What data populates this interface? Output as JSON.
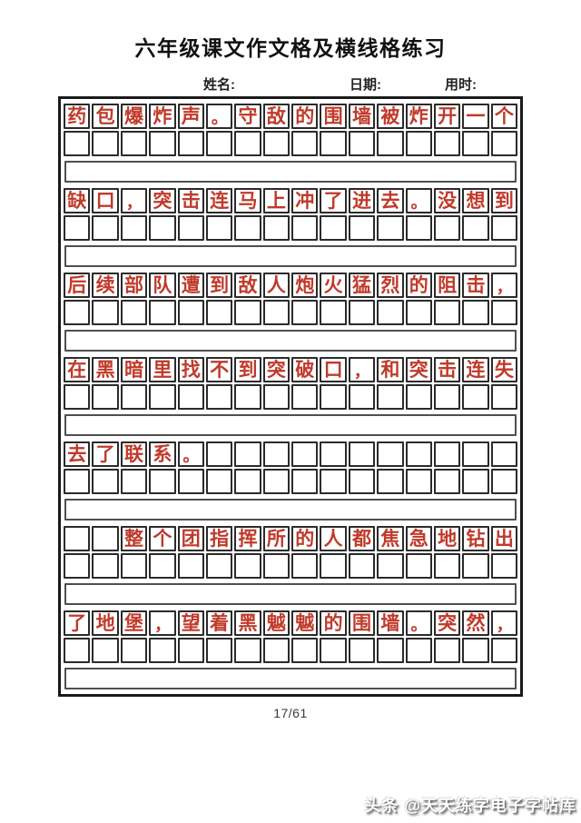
{
  "title": "六年级课文作文格及横线格练习",
  "header": {
    "name_label": "姓名:",
    "date_label": "日期:",
    "time_label": "用时:"
  },
  "sheet": {
    "columns": 16,
    "punctuation": [
      "。",
      "，"
    ],
    "blocks": [
      {
        "model_text": "药包爆炸声。守敌的围墙被炸开一个",
        "cells": [
          "药",
          "包",
          "爆",
          "炸",
          "声",
          "。",
          "守",
          "敌",
          "的",
          "围",
          "墙",
          "被",
          "炸",
          "开",
          "一",
          "个"
        ]
      },
      {
        "model_text": "缺口，突击连马上冲了进去。没想到",
        "cells": [
          "缺",
          "口",
          "，",
          "突",
          "击",
          "连",
          "马",
          "上",
          "冲",
          "了",
          "进",
          "去",
          "。",
          "没",
          "想",
          "到"
        ]
      },
      {
        "model_text": "后续部队遭到敌人炮火猛烈的阻击，",
        "cells": [
          "后",
          "续",
          "部",
          "队",
          "遭",
          "到",
          "敌",
          "人",
          "炮",
          "火",
          "猛",
          "烈",
          "的",
          "阻",
          "击",
          "，"
        ]
      },
      {
        "model_text": "在黑暗里找不到突破口，和突击连失",
        "cells": [
          "在",
          "黑",
          "暗",
          "里",
          "找",
          "不",
          "到",
          "突",
          "破",
          "口",
          "，",
          "和",
          "突",
          "击",
          "连",
          "失"
        ]
      },
      {
        "model_text": "去了联系。",
        "cells": [
          "去",
          "了",
          "联",
          "系",
          "。",
          "",
          "",
          "",
          "",
          "",
          "",
          "",
          "",
          "",
          "",
          ""
        ]
      },
      {
        "model_text": "整个团指挥所的人都焦急地钻出",
        "cells": [
          "",
          "",
          "整",
          "个",
          "团",
          "指",
          "挥",
          "所",
          "的",
          "人",
          "都",
          "焦",
          "急",
          "地",
          "钻",
          "出"
        ]
      },
      {
        "model_text": "了地堡，望着黑魆魆的围墙。突然，",
        "cells": [
          "了",
          "地",
          "堡",
          "，",
          "望",
          "着",
          "黑",
          "魆",
          "魆",
          "的",
          "围",
          "墙",
          "。",
          "突",
          "然",
          "，"
        ]
      }
    ]
  },
  "footer": {
    "page_number": "17/61",
    "watermark": "头条 @天天练字电子字帖库"
  },
  "colors": {
    "model_char": "#c03a2b",
    "outer_border": "#1a1a1a",
    "cell_border": "#2b2b2b",
    "hline_border": "#4f4f4f"
  }
}
